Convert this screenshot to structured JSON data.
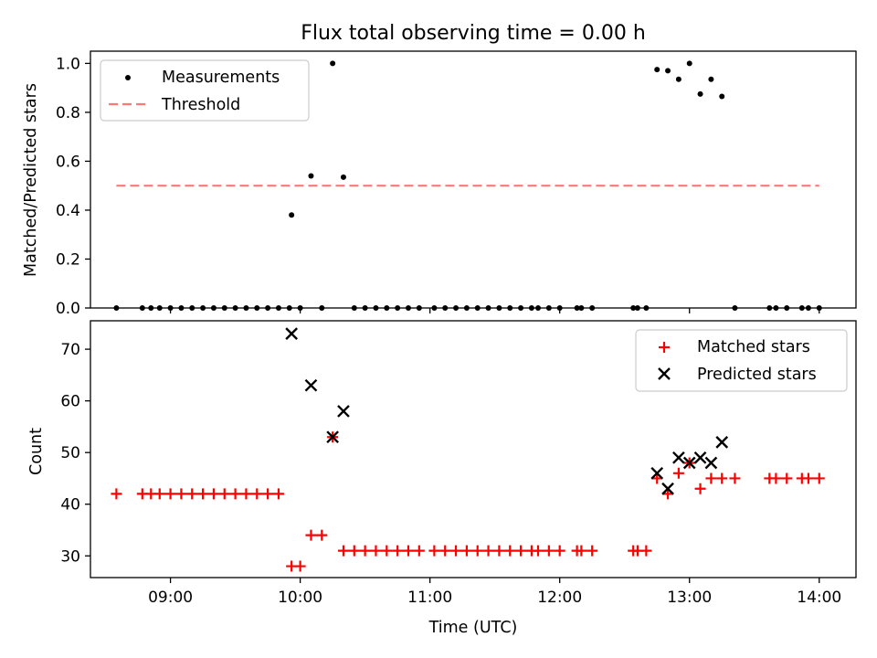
{
  "title": "Flux total observing time = 0.00 h",
  "chart_data": [
    {
      "type": "scatter",
      "ylabel": "Matched/Predicted stars",
      "xlim": [
        "08:23",
        "14:17"
      ],
      "ylim": [
        0,
        1.05
      ],
      "yticks": [
        0.0,
        0.2,
        0.4,
        0.6,
        0.8,
        1.0
      ],
      "ytick_labels": [
        "0.0",
        "0.2",
        "0.4",
        "0.6",
        "0.8",
        "1.0"
      ],
      "legend_position": "top-left",
      "legend": [
        {
          "key": "measurements",
          "label": "Measurements"
        },
        {
          "key": "threshold",
          "label": "Threshold"
        }
      ],
      "series": [
        {
          "name": "Measurements",
          "marker": "dot",
          "color": "#000000",
          "points": [
            [
              "08:35",
              0
            ],
            [
              "08:47",
              0
            ],
            [
              "08:51",
              0
            ],
            [
              "08:55",
              0
            ],
            [
              "09:00",
              0
            ],
            [
              "09:05",
              0
            ],
            [
              "09:10",
              0
            ],
            [
              "09:15",
              0
            ],
            [
              "09:20",
              0
            ],
            [
              "09:25",
              0
            ],
            [
              "09:30",
              0
            ],
            [
              "09:35",
              0
            ],
            [
              "09:40",
              0
            ],
            [
              "09:45",
              0
            ],
            [
              "09:50",
              0
            ],
            [
              "09:55",
              0
            ],
            [
              "09:56",
              0.38
            ],
            [
              "10:00",
              0
            ],
            [
              "10:05",
              0.54
            ],
            [
              "10:10",
              0
            ],
            [
              "10:15",
              1.0
            ],
            [
              "10:20",
              0.535
            ],
            [
              "10:25",
              0
            ],
            [
              "10:30",
              0
            ],
            [
              "10:35",
              0
            ],
            [
              "10:40",
              0
            ],
            [
              "10:45",
              0
            ],
            [
              "10:50",
              0
            ],
            [
              "10:55",
              0
            ],
            [
              "11:02",
              0
            ],
            [
              "11:07",
              0
            ],
            [
              "11:12",
              0
            ],
            [
              "11:17",
              0
            ],
            [
              "11:22",
              0
            ],
            [
              "11:27",
              0
            ],
            [
              "11:32",
              0
            ],
            [
              "11:37",
              0
            ],
            [
              "11:42",
              0
            ],
            [
              "11:47",
              0
            ],
            [
              "11:50",
              0
            ],
            [
              "11:55",
              0
            ],
            [
              "12:00",
              0
            ],
            [
              "12:08",
              0
            ],
            [
              "12:10",
              0
            ],
            [
              "12:15",
              0
            ],
            [
              "12:34",
              0
            ],
            [
              "12:36",
              0
            ],
            [
              "12:40",
              0
            ],
            [
              "12:45",
              0.975
            ],
            [
              "12:50",
              0.97
            ],
            [
              "12:55",
              0.935
            ],
            [
              "13:00",
              1.0
            ],
            [
              "13:05",
              0.875
            ],
            [
              "13:10",
              0.935
            ],
            [
              "13:15",
              0.865
            ],
            [
              "13:21",
              0
            ],
            [
              "13:37",
              0
            ],
            [
              "13:40",
              0
            ],
            [
              "13:45",
              0
            ],
            [
              "13:52",
              0
            ],
            [
              "13:55",
              0
            ],
            [
              "14:00",
              0
            ]
          ]
        },
        {
          "name": "Threshold",
          "marker": "dashed-line",
          "color": "#ff7777",
          "points": [
            [
              "08:35",
              0.5
            ],
            [
              "14:00",
              0.5
            ]
          ]
        }
      ]
    },
    {
      "type": "scatter",
      "xlabel": "Time (UTC)",
      "ylabel": "Count",
      "xlim": [
        "08:23",
        "14:17"
      ],
      "ylim": [
        25.8,
        75.5
      ],
      "xticks": [
        "09:00",
        "10:00",
        "11:00",
        "12:00",
        "13:00",
        "14:00"
      ],
      "yticks": [
        30,
        40,
        50,
        60,
        70
      ],
      "ytick_labels": [
        "30",
        "40",
        "50",
        "60",
        "70"
      ],
      "legend_position": "top-right",
      "legend": [
        {
          "key": "matched",
          "label": "Matched stars"
        },
        {
          "key": "predicted",
          "label": "Predicted stars"
        }
      ],
      "series": [
        {
          "name": "Matched stars",
          "marker": "plus",
          "color": "#ff0000",
          "points": [
            [
              "08:35",
              42
            ],
            [
              "08:47",
              42
            ],
            [
              "08:51",
              42
            ],
            [
              "08:55",
              42
            ],
            [
              "09:00",
              42
            ],
            [
              "09:05",
              42
            ],
            [
              "09:10",
              42
            ],
            [
              "09:15",
              42
            ],
            [
              "09:20",
              42
            ],
            [
              "09:25",
              42
            ],
            [
              "09:30",
              42
            ],
            [
              "09:35",
              42
            ],
            [
              "09:40",
              42
            ],
            [
              "09:45",
              42
            ],
            [
              "09:50",
              42
            ],
            [
              "09:56",
              28
            ],
            [
              "10:00",
              28
            ],
            [
              "10:05",
              34
            ],
            [
              "10:10",
              34
            ],
            [
              "10:15",
              53
            ],
            [
              "10:20",
              31
            ],
            [
              "10:25",
              31
            ],
            [
              "10:30",
              31
            ],
            [
              "10:35",
              31
            ],
            [
              "10:40",
              31
            ],
            [
              "10:45",
              31
            ],
            [
              "10:50",
              31
            ],
            [
              "10:55",
              31
            ],
            [
              "11:02",
              31
            ],
            [
              "11:07",
              31
            ],
            [
              "11:12",
              31
            ],
            [
              "11:17",
              31
            ],
            [
              "11:22",
              31
            ],
            [
              "11:27",
              31
            ],
            [
              "11:32",
              31
            ],
            [
              "11:37",
              31
            ],
            [
              "11:42",
              31
            ],
            [
              "11:47",
              31
            ],
            [
              "11:50",
              31
            ],
            [
              "11:55",
              31
            ],
            [
              "12:00",
              31
            ],
            [
              "12:08",
              31
            ],
            [
              "12:10",
              31
            ],
            [
              "12:15",
              31
            ],
            [
              "12:34",
              31
            ],
            [
              "12:36",
              31
            ],
            [
              "12:40",
              31
            ],
            [
              "12:45",
              45
            ],
            [
              "12:50",
              42
            ],
            [
              "12:55",
              46
            ],
            [
              "13:00",
              48
            ],
            [
              "13:05",
              43
            ],
            [
              "13:10",
              45
            ],
            [
              "13:15",
              45
            ],
            [
              "13:21",
              45
            ],
            [
              "13:37",
              45
            ],
            [
              "13:40",
              45
            ],
            [
              "13:45",
              45
            ],
            [
              "13:52",
              45
            ],
            [
              "13:55",
              45
            ],
            [
              "14:00",
              45
            ]
          ]
        },
        {
          "name": "Predicted stars",
          "marker": "x",
          "color": "#000000",
          "points": [
            [
              "09:56",
              73
            ],
            [
              "10:05",
              63
            ],
            [
              "10:15",
              53
            ],
            [
              "10:20",
              58
            ],
            [
              "12:45",
              46
            ],
            [
              "12:50",
              43
            ],
            [
              "12:55",
              49
            ],
            [
              "13:00",
              48
            ],
            [
              "13:05",
              49
            ],
            [
              "13:10",
              48
            ],
            [
              "13:15",
              52
            ]
          ]
        }
      ]
    }
  ]
}
